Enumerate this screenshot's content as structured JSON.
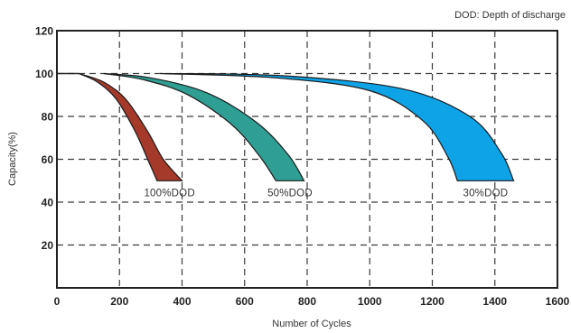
{
  "chart_data": {
    "type": "area",
    "note": "DOD: Depth of discharge",
    "xlabel": "Number of Cycles",
    "ylabel": "Capacity(%)",
    "xlim": [
      0,
      1600
    ],
    "ylim": [
      0,
      120
    ],
    "x_ticks": [
      "0",
      "200",
      "400",
      "600",
      "800",
      "1000",
      "1200",
      "1400",
      "1600"
    ],
    "y_ticks": [
      "20",
      "40",
      "60",
      "80",
      "100",
      "120"
    ],
    "grid": true,
    "series": [
      {
        "name": "100%DOD",
        "color": "#a53a2a",
        "upper": [
          [
            70,
            100
          ],
          [
            150,
            96
          ],
          [
            220,
            88
          ],
          [
            290,
            73
          ],
          [
            340,
            60
          ],
          [
            400,
            50
          ]
        ],
        "lower": [
          [
            70,
            100
          ],
          [
            130,
            96
          ],
          [
            190,
            88
          ],
          [
            250,
            73
          ],
          [
            290,
            60
          ],
          [
            320,
            50
          ]
        ]
      },
      {
        "name": "50%DOD",
        "color": "#2f9f93",
        "upper": [
          [
            150,
            100
          ],
          [
            300,
            98
          ],
          [
            480,
            91
          ],
          [
            640,
            77
          ],
          [
            740,
            62
          ],
          [
            790,
            50
          ]
        ],
        "lower": [
          [
            150,
            100
          ],
          [
            280,
            97
          ],
          [
            420,
            90
          ],
          [
            560,
            76
          ],
          [
            650,
            61
          ],
          [
            700,
            50
          ]
        ]
      },
      {
        "name": "30%DOD",
        "color": "#0ea3e6",
        "upper": [
          [
            330,
            100
          ],
          [
            720,
            99
          ],
          [
            1100,
            93
          ],
          [
            1320,
            80
          ],
          [
            1420,
            63
          ],
          [
            1460,
            50
          ]
        ],
        "lower": [
          [
            330,
            100
          ],
          [
            700,
            98
          ],
          [
            1000,
            92
          ],
          [
            1170,
            78
          ],
          [
            1250,
            61
          ],
          [
            1280,
            50
          ]
        ]
      }
    ]
  }
}
